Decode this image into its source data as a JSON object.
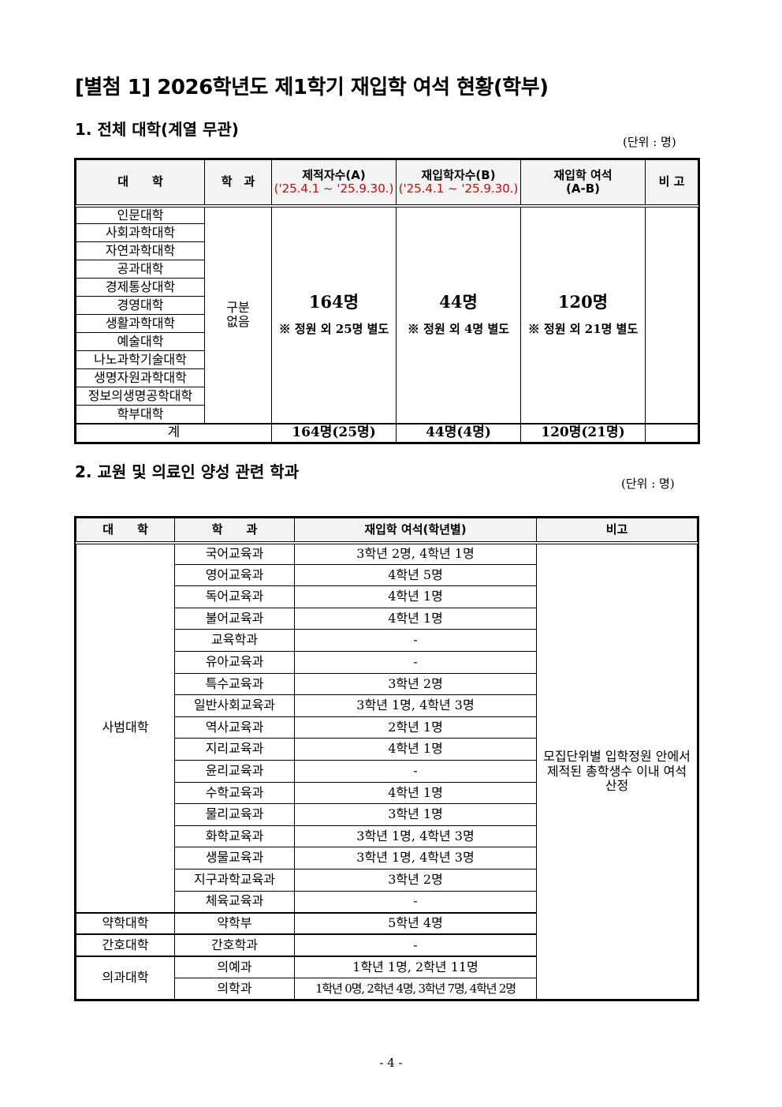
{
  "title": "[별첨 1] 2026학년도 제1학기 재입학 여석 현황(학부)",
  "section1": {
    "heading": "1. 전체 대학(계열 무관)",
    "unit": "(단위 : 명)",
    "headers": {
      "college": "대　　학",
      "dept": "학　과",
      "enrolled": "제적자수(A)",
      "enrolled_period": "('25.4.1 ~ '25.9.30.)",
      "readmitted": "재입학자수(B)",
      "readmitted_period": "('25.4.1 ~ '25.9.30.)",
      "vacancy": "재입학 여석",
      "vacancy_formula": "(A-B)",
      "remarks": "비 고"
    },
    "colleges": [
      "인문대학",
      "사회과학대학",
      "자연과학대학",
      "공과대학",
      "경제통상대학",
      "경영대학",
      "생활과학대학",
      "예술대학",
      "나노과학기술대학",
      "생명자원과학대학",
      "정보의생명공학대학",
      "학부대학"
    ],
    "dept": "구분\n없음",
    "enrolled": "164명",
    "enrolled_note": "※ 정원 외 25명 별도",
    "readmitted": "44명",
    "readmitted_note": "※ 정원 외 4명 별도",
    "vacancy": "120명",
    "vacancy_note": "※ 정원 외 21명 별도",
    "total": {
      "label": "계",
      "enrolled": "164명(25명)",
      "readmitted": "44명(4명)",
      "vacancy": "120명(21명)"
    }
  },
  "section2": {
    "heading": "2. 교원 및 의료인 양성 관련 학과",
    "unit": "(단위 : 명)",
    "headers": {
      "college": "대　　학",
      "dept": "학　　과",
      "vacancy": "재입학 여석(학년별)",
      "remarks": "비고"
    },
    "remarks": "모집단위별 입학정원 안에서 제적된 총학생수 이내 여석 산정",
    "groups": [
      {
        "college": "사범대학",
        "rows": [
          {
            "dept": "국어교육과",
            "vacancy": "3학년 2명, 4학년 1명"
          },
          {
            "dept": "영어교육과",
            "vacancy": "4학년 5명"
          },
          {
            "dept": "독어교육과",
            "vacancy": "4학년 1명"
          },
          {
            "dept": "불어교육과",
            "vacancy": "4학년 1명"
          },
          {
            "dept": "교육학과",
            "vacancy": "-"
          },
          {
            "dept": "유아교육과",
            "vacancy": "-"
          },
          {
            "dept": "특수교육과",
            "vacancy": "3학년 2명"
          },
          {
            "dept": "일반사회교육과",
            "vacancy": "3학년 1명, 4학년 3명"
          },
          {
            "dept": "역사교육과",
            "vacancy": "2학년 1명"
          },
          {
            "dept": "지리교육과",
            "vacancy": "4학년 1명"
          },
          {
            "dept": "윤리교육과",
            "vacancy": "-"
          },
          {
            "dept": "수학교육과",
            "vacancy": "4학년 1명"
          },
          {
            "dept": "물리교육과",
            "vacancy": "3학년 1명"
          },
          {
            "dept": "화학교육과",
            "vacancy": "3학년 1명, 4학년 3명"
          },
          {
            "dept": "생물교육과",
            "vacancy": "3학년 1명, 4학년 3명"
          },
          {
            "dept": "지구과학교육과",
            "vacancy": "3학년 2명"
          },
          {
            "dept": "체육교육과",
            "vacancy": "-"
          }
        ]
      },
      {
        "college": "약학대학",
        "rows": [
          {
            "dept": "약학부",
            "vacancy": "5학년 4명"
          }
        ]
      },
      {
        "college": "간호대학",
        "rows": [
          {
            "dept": "간호학과",
            "vacancy": "-"
          }
        ]
      },
      {
        "college": "의과대학",
        "rows": [
          {
            "dept": "의예과",
            "vacancy": "1학년 1명, 2학년 11명"
          },
          {
            "dept": "의학과",
            "vacancy": "1학년 0명, 2학년 4명, 3학년 7명, 4학년 2명"
          }
        ]
      }
    ]
  },
  "footer": {
    "page": "- 4 -"
  },
  "colors": {
    "period_red": "#e00000",
    "header_bg": "#f3f3f3"
  }
}
